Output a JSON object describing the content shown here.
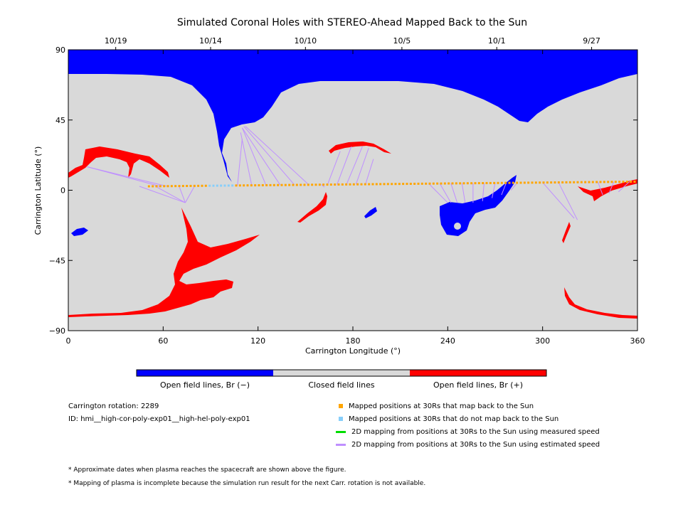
{
  "chart_data": {
    "type": "map",
    "title": "Simulated Coronal Holes with STEREO-Ahead Mapped Back to the Sun",
    "xlabel": "Carrington Longitude (°)",
    "ylabel": "Carrington Latitude (°)",
    "xlim": [
      0,
      360
    ],
    "ylim": [
      -90,
      90
    ],
    "x_ticks": [
      0,
      60,
      120,
      180,
      240,
      300,
      360
    ],
    "y_ticks": [
      90,
      45,
      0,
      -45,
      -90
    ],
    "y_tick_labels": [
      "90",
      "45",
      "0",
      "−45",
      "−90"
    ],
    "top_dates": [
      {
        "label": "10/19",
        "lon": 30
      },
      {
        "label": "10/14",
        "lon": 90
      },
      {
        "label": "10/10",
        "lon": 150
      },
      {
        "label": "10/5",
        "lon": 211
      },
      {
        "label": "10/1",
        "lon": 271
      },
      {
        "label": "9/27",
        "lon": 331
      }
    ],
    "colorbar": [
      {
        "label": "Open field lines, Br (−)",
        "color": "#0000ff"
      },
      {
        "label": "Closed field lines",
        "color": "#d9d9d9"
      },
      {
        "label": "Open field lines, Br (+)",
        "color": "#ff0000"
      }
    ],
    "colors": {
      "negative": "#0000ff",
      "closed": "#d9d9d9",
      "positive": "#ff0000",
      "mapped": "#ffa500",
      "unmapped": "#87cefa",
      "measured": "#00dd00",
      "estimated": "#bf8fff"
    },
    "mapped_track": {
      "lon_start": 51,
      "lon_end": 360,
      "lat_start": 2.5,
      "lat_end": 5.5,
      "unmapped_lon_range": [
        88,
        104
      ]
    },
    "mapping_lines": [
      {
        "from": [
          58,
          2.5
        ],
        "to": [
          12,
          15
        ]
      },
      {
        "from": [
          62,
          2.6
        ],
        "to": [
          12,
          15
        ]
      },
      {
        "from": [
          45,
          2.5
        ],
        "to": [
          74,
          -8
        ]
      },
      {
        "from": [
          55,
          2.6
        ],
        "to": [
          74,
          -8
        ]
      },
      {
        "from": [
          70,
          2.8
        ],
        "to": [
          74,
          -8
        ]
      },
      {
        "from": [
          80,
          2.9
        ],
        "to": [
          74,
          -8
        ]
      },
      {
        "from": [
          107,
          3.1
        ],
        "to": [
          110,
          33
        ]
      },
      {
        "from": [
          116,
          3.2
        ],
        "to": [
          109,
          37
        ]
      },
      {
        "from": [
          125,
          3.3
        ],
        "to": [
          110,
          40
        ]
      },
      {
        "from": [
          134,
          3.4
        ],
        "to": [
          110,
          40
        ]
      },
      {
        "from": [
          143,
          3.5
        ],
        "to": [
          111,
          41
        ]
      },
      {
        "from": [
          152,
          3.6
        ],
        "to": [
          112,
          41
        ]
      },
      {
        "from": [
          160,
          3.7
        ],
        "to": [
          162,
          2
        ]
      },
      {
        "from": [
          164,
          3.7
        ],
        "to": [
          172,
          25
        ]
      },
      {
        "from": [
          170,
          3.7
        ],
        "to": [
          179,
          28
        ]
      },
      {
        "from": [
          176,
          3.8
        ],
        "to": [
          186,
          28
        ]
      },
      {
        "from": [
          182,
          3.9
        ],
        "to": [
          190,
          27
        ]
      },
      {
        "from": [
          188,
          3.9
        ],
        "to": [
          193,
          20
        ]
      },
      {
        "from": [
          228,
          4.2
        ],
        "to": [
          240,
          -8
        ]
      },
      {
        "from": [
          235,
          4.3
        ],
        "to": [
          242,
          -8
        ]
      },
      {
        "from": [
          242,
          4.4
        ],
        "to": [
          246,
          -8
        ]
      },
      {
        "from": [
          249,
          4.4
        ],
        "to": [
          251,
          -8
        ]
      },
      {
        "from": [
          256,
          4.5
        ],
        "to": [
          256,
          -8
        ]
      },
      {
        "from": [
          263,
          4.6
        ],
        "to": [
          262,
          -7
        ]
      },
      {
        "from": [
          270,
          4.6
        ],
        "to": [
          268,
          -5
        ]
      },
      {
        "from": [
          277,
          4.7
        ],
        "to": [
          274,
          -3
        ]
      },
      {
        "from": [
          284,
          4.8
        ],
        "to": [
          280,
          0
        ]
      },
      {
        "from": [
          300,
          5.0
        ],
        "to": [
          320,
          -18
        ]
      },
      {
        "from": [
          310,
          5.1
        ],
        "to": [
          322,
          -19
        ]
      },
      {
        "from": [
          335,
          5.2
        ],
        "to": [
          338,
          -3
        ]
      },
      {
        "from": [
          345,
          5.3
        ],
        "to": [
          342,
          -2
        ]
      },
      {
        "from": [
          355,
          5.5
        ],
        "to": [
          348,
          -1
        ]
      }
    ]
  },
  "info": {
    "rotation": "Carrington rotation: 2289",
    "id": "ID: hmi__high-cor-poly-exp01__high-hel-poly-exp01"
  },
  "legend": [
    {
      "label": "Mapped positions at 30Rs that map back to the Sun"
    },
    {
      "label": "Mapped positions at 30Rs that do not map back to the Sun"
    },
    {
      "label": "2D mapping from positions at 30Rs to the Sun using measured speed"
    },
    {
      "label": "2D mapping from positions at 30Rs to the Sun using estimated speed"
    }
  ],
  "notes": [
    "* Approximate dates when plasma reaches the spacecraft are shown above the figure.",
    "* Mapping of plasma is incomplete because the simulation run result for the next Carr. rotation is not available."
  ]
}
